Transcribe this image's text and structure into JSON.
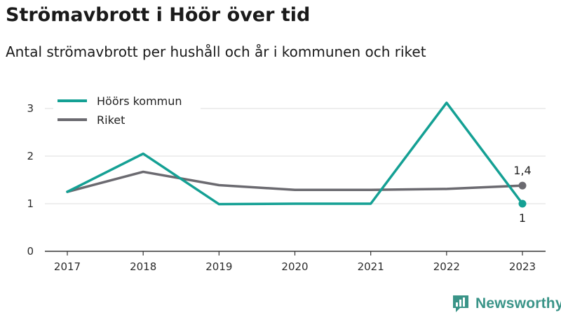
{
  "title": "Strömavbrott i Höör över tid",
  "subtitle": "Antal strömavbrott per hushåll och år i kommunen och riket",
  "brand": {
    "name": "Newsworthy",
    "color": "#3a9488"
  },
  "chart_data": {
    "type": "line",
    "title": "Strömavbrott i Höör över tid",
    "subtitle": "Antal strömavbrott per hushåll och år i kommunen och riket",
    "xlabel": "",
    "ylabel": "",
    "categories": [
      "2017",
      "2018",
      "2019",
      "2020",
      "2021",
      "2022",
      "2023"
    ],
    "y_ticks": [
      0,
      1,
      2,
      3
    ],
    "ylim": [
      0,
      3.3
    ],
    "grid": "horizontal",
    "legend_position": "top-left",
    "series": [
      {
        "name": "Höörs kommun",
        "color": "#14a094",
        "values": [
          1.25,
          2.05,
          0.99,
          1.0,
          1.0,
          3.12,
          1.0
        ],
        "end_label": "1"
      },
      {
        "name": "Riket",
        "color": "#6b6a70",
        "values": [
          1.25,
          1.67,
          1.39,
          1.29,
          1.29,
          1.31,
          1.38
        ],
        "end_label": "1,4"
      }
    ]
  }
}
